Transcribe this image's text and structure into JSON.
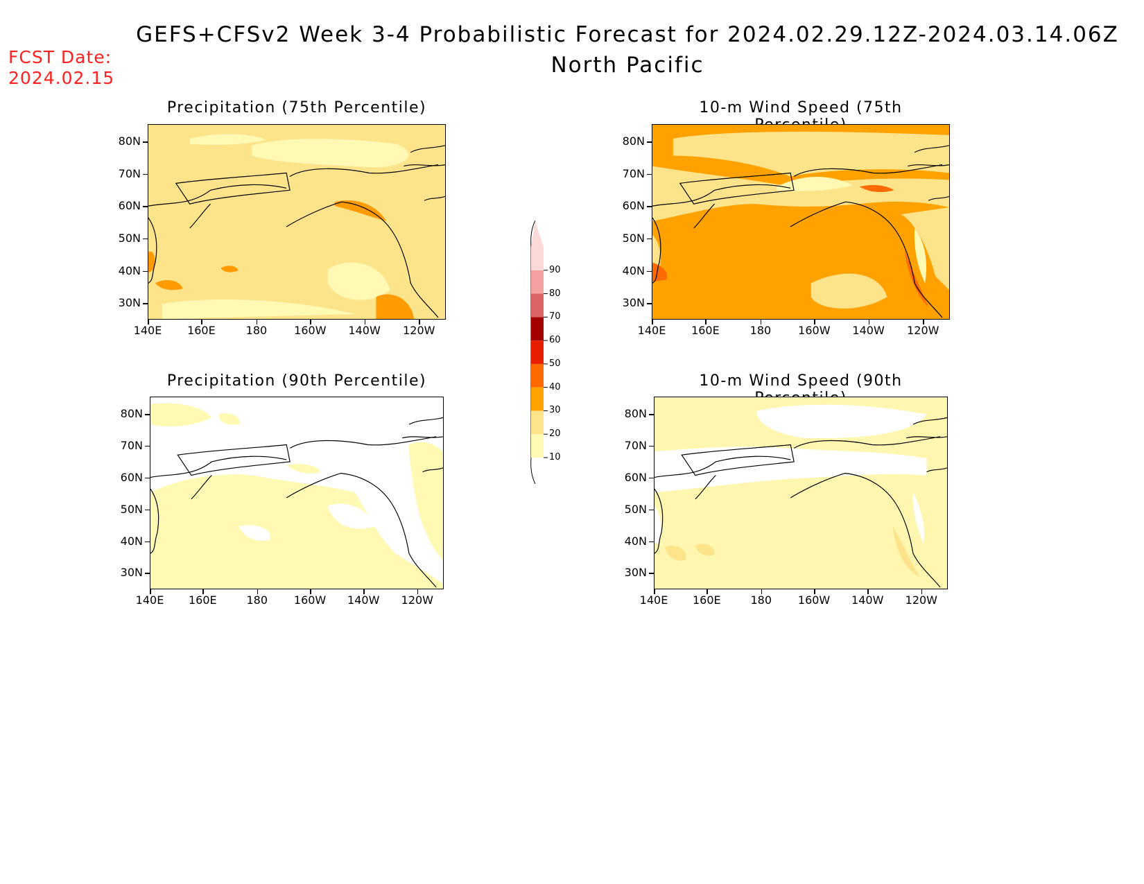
{
  "header": {
    "title": "GEFS+CFSv2 Week 3-4 Probabilistic Forecast for 2024.02.29.12Z-2024.03.14.06Z",
    "subtitle": "North Pacific",
    "fcst_label": "FCST Date:",
    "fcst_date": "2024.02.15"
  },
  "panels": [
    {
      "title": "Precipitation (75th Percentile)",
      "base_color": "#fde38a"
    },
    {
      "title": "10-m Wind Speed (75th Percentile)",
      "base_color": "#ffa200"
    },
    {
      "title": "Precipitation (90th Percentile)",
      "base_color": "#ffffff"
    },
    {
      "title": "10-m Wind Speed (90th Percentile)",
      "base_color": "#fff6b0"
    }
  ],
  "axes": {
    "lat_labels": [
      "80N",
      "70N",
      "60N",
      "50N",
      "40N",
      "30N"
    ],
    "lon_labels": [
      "140E",
      "160E",
      "180",
      "160W",
      "140W",
      "120W"
    ]
  },
  "colorbar": {
    "levels": [
      "10",
      "20",
      "30",
      "40",
      "50",
      "60",
      "70",
      "80",
      "90"
    ],
    "colors": [
      "#fff9b4",
      "#fde38a",
      "#ffa200",
      "#ff6a00",
      "#e81e00",
      "#a50000",
      "#d96464",
      "#f4a0a0",
      "#fddada"
    ]
  }
}
